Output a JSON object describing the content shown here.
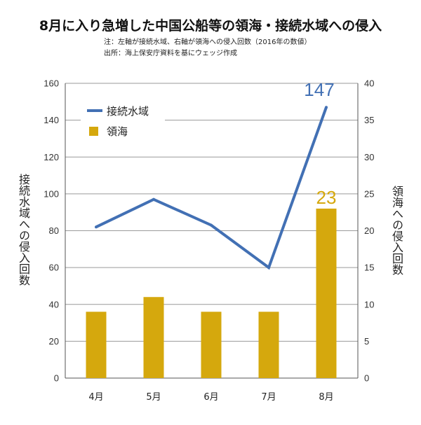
{
  "chart_data": {
    "type": "bar",
    "title": "8月に入り急増した中国公船等の領海・接続水域への侵入",
    "notes": [
      "注：左軸が接続水域、右軸が領海への侵入回数（2016年の数値）",
      "出所：海上保安庁資料を基にウェッジ作成"
    ],
    "categories": [
      "4月",
      "5月",
      "6月",
      "7月",
      "8月"
    ],
    "series": [
      {
        "name": "接続水域",
        "type": "line",
        "axis": "left",
        "color": "#4270b4",
        "values": [
          82,
          97,
          83,
          60,
          147
        ]
      },
      {
        "name": "領海",
        "type": "bar",
        "axis": "right",
        "color": "#d5a80d",
        "values": [
          9,
          11,
          9,
          9,
          23
        ]
      }
    ],
    "left_axis": {
      "label": "接続水域への侵入回数",
      "ylim": [
        0,
        160
      ],
      "ticks": [
        0,
        20,
        40,
        60,
        80,
        100,
        120,
        140,
        160
      ]
    },
    "right_axis": {
      "label": "領海への侵入回数",
      "ylim": [
        0,
        40
      ],
      "ticks": [
        0,
        5,
        10,
        15,
        20,
        25,
        30,
        35,
        40
      ]
    },
    "data_labels": [
      {
        "series": "接続水域",
        "category": "8月",
        "text": "147"
      },
      {
        "series": "領海",
        "category": "8月",
        "text": "23"
      }
    ],
    "legend": "top-left",
    "grid": true
  }
}
